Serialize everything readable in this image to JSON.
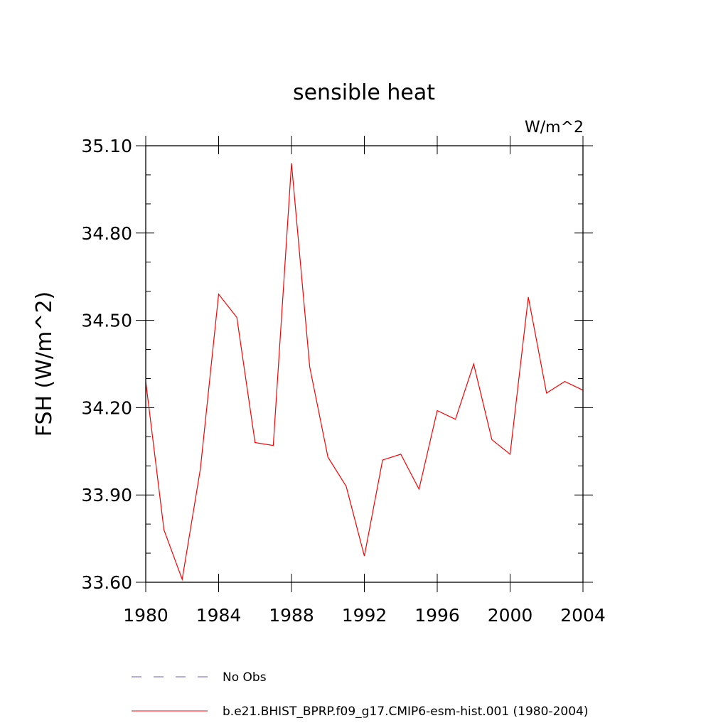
{
  "chart_data": {
    "type": "line",
    "title": "sensible heat",
    "units_label": "W/m^2",
    "xlabel": "",
    "ylabel": "FSH  (W/m^2)",
    "xlim": [
      1980,
      2004
    ],
    "ylim": [
      33.6,
      35.1
    ],
    "x_ticks": [
      1980,
      1984,
      1988,
      1992,
      1996,
      2000,
      2004
    ],
    "x_tick_labels": [
      "1980",
      "1984",
      "1988",
      "1992",
      "1996",
      "2000",
      "2004"
    ],
    "y_ticks": [
      33.6,
      33.9,
      34.2,
      34.5,
      34.8,
      35.1
    ],
    "y_tick_labels": [
      "33.60",
      "33.90",
      "34.20",
      "34.50",
      "34.80",
      "35.10"
    ],
    "y_minor_step": 0.1,
    "x_minor_step": 1,
    "grid": false,
    "series": [
      {
        "name": "b.e21.BHIST_BPRP.f09_g17.CMIP6-esm-hist.001 (1980-2004)",
        "color": "#ff0000",
        "x": [
          1980,
          1981,
          1982,
          1983,
          1984,
          1985,
          1986,
          1987,
          1988,
          1989,
          1990,
          1991,
          1992,
          1993,
          1994,
          1995,
          1996,
          1997,
          1998,
          1999,
          2000,
          2001,
          2002,
          2003,
          2004
        ],
        "values": [
          34.29,
          33.78,
          33.61,
          33.99,
          34.59,
          34.51,
          34.08,
          34.07,
          35.04,
          34.34,
          34.03,
          33.93,
          33.69,
          34.02,
          34.04,
          33.92,
          34.19,
          34.16,
          34.35,
          34.09,
          34.04,
          34.58,
          34.25,
          34.29,
          34.26
        ]
      }
    ],
    "legend": {
      "placement": "bottom",
      "entries": [
        {
          "label": "No Obs",
          "color": "#6a5acd",
          "style": "dashed"
        },
        {
          "label": "b.e21.BHIST_BPRP.f09_g17.CMIP6-esm-hist.001 (1980-2004)",
          "color": "#ff0000",
          "style": "solid"
        }
      ]
    }
  }
}
